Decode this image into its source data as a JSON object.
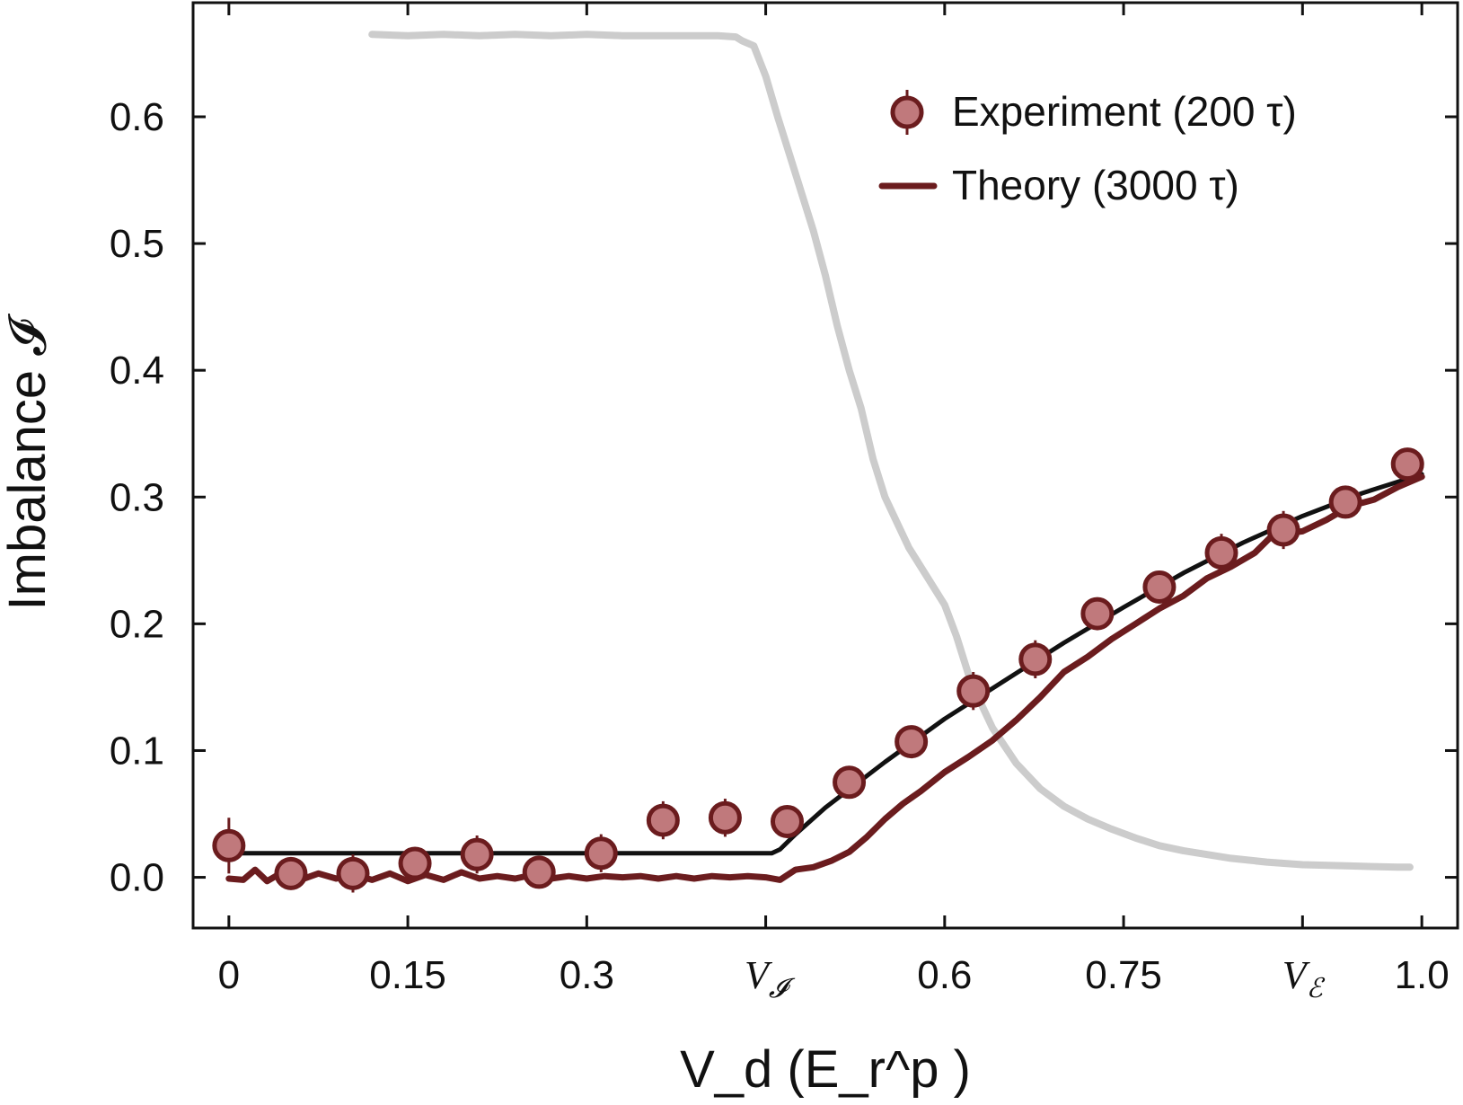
{
  "chart_data": {
    "type": "scatter",
    "xlabel": "V_d (E_r^p )",
    "ylabel": "Imbalance 𝓘",
    "xlim": [
      -0.03,
      1.03
    ],
    "ylim": [
      -0.04,
      0.69
    ],
    "x_ticks": [
      {
        "value": 0,
        "label": "0",
        "color": "#111111"
      },
      {
        "value": 0.15,
        "label": "0.15",
        "color": "#111111"
      },
      {
        "value": 0.3,
        "label": "0.3",
        "color": "#111111"
      },
      {
        "value": 0.6,
        "label": "0.6",
        "color": "#111111"
      },
      {
        "value": 0.75,
        "label": "0.75",
        "color": "#111111"
      },
      {
        "value": 1.0,
        "label": "1.0",
        "color": "#111111"
      }
    ],
    "x_special_ticks": [
      {
        "value": 0.45,
        "base": "V",
        "sub": "𝓘",
        "color": "#b7787a"
      },
      {
        "value": 0.9,
        "base": "V",
        "sub": "ℰ",
        "color": "#7b90bf"
      }
    ],
    "x_minor_ticks": [
      0.45,
      0.9
    ],
    "y_ticks": [
      {
        "value": 0.0,
        "label": "0.0"
      },
      {
        "value": 0.1,
        "label": "0.1"
      },
      {
        "value": 0.2,
        "label": "0.2"
      },
      {
        "value": 0.3,
        "label": "0.3"
      },
      {
        "value": 0.4,
        "label": "0.4"
      },
      {
        "value": 0.5,
        "label": "0.5"
      },
      {
        "value": 0.6,
        "label": "0.6"
      }
    ],
    "legend_position": "top-right",
    "series": [
      {
        "name": "Experiment (200 τ)",
        "kind": "points_with_errorbars",
        "fill": "#c0797c",
        "stroke": "#6b1c1e",
        "points": [
          {
            "x": 0.0,
            "y": 0.025,
            "err": 0.022
          },
          {
            "x": 0.052,
            "y": 0.003,
            "err": 0.01
          },
          {
            "x": 0.104,
            "y": 0.003,
            "err": 0.015
          },
          {
            "x": 0.156,
            "y": 0.011,
            "err": 0.01
          },
          {
            "x": 0.208,
            "y": 0.018,
            "err": 0.015
          },
          {
            "x": 0.26,
            "y": 0.004,
            "err": 0.01
          },
          {
            "x": 0.312,
            "y": 0.019,
            "err": 0.015
          },
          {
            "x": 0.364,
            "y": 0.045,
            "err": 0.015
          },
          {
            "x": 0.416,
            "y": 0.047,
            "err": 0.015
          },
          {
            "x": 0.468,
            "y": 0.044,
            "err": 0.01
          },
          {
            "x": 0.52,
            "y": 0.075,
            "err": 0.012
          },
          {
            "x": 0.572,
            "y": 0.107,
            "err": 0.01
          },
          {
            "x": 0.624,
            "y": 0.147,
            "err": 0.015
          },
          {
            "x": 0.676,
            "y": 0.172,
            "err": 0.015
          },
          {
            "x": 0.728,
            "y": 0.208,
            "err": 0.012
          },
          {
            "x": 0.78,
            "y": 0.229,
            "err": 0.01
          },
          {
            "x": 0.832,
            "y": 0.256,
            "err": 0.015
          },
          {
            "x": 0.884,
            "y": 0.274,
            "err": 0.015
          },
          {
            "x": 0.936,
            "y": 0.296,
            "err": 0.01
          },
          {
            "x": 0.988,
            "y": 0.326,
            "err": 0.012
          }
        ]
      },
      {
        "name": "Theory (3000 τ)",
        "kind": "line",
        "color": "#6b1c1e",
        "points": [
          [
            0.0,
            -0.001
          ],
          [
            0.012,
            -0.002
          ],
          [
            0.022,
            0.006
          ],
          [
            0.032,
            -0.003
          ],
          [
            0.045,
            0.004
          ],
          [
            0.06,
            -0.002
          ],
          [
            0.075,
            0.003
          ],
          [
            0.09,
            -0.001
          ],
          [
            0.105,
            0.002
          ],
          [
            0.12,
            -0.002
          ],
          [
            0.135,
            0.003
          ],
          [
            0.15,
            -0.003
          ],
          [
            0.165,
            0.002
          ],
          [
            0.18,
            -0.002
          ],
          [
            0.195,
            0.004
          ],
          [
            0.21,
            -0.001
          ],
          [
            0.225,
            0.001
          ],
          [
            0.24,
            -0.001
          ],
          [
            0.255,
            0.002
          ],
          [
            0.27,
            -0.001
          ],
          [
            0.285,
            0.001
          ],
          [
            0.3,
            -0.001
          ],
          [
            0.315,
            0.001
          ],
          [
            0.33,
            0.0
          ],
          [
            0.345,
            0.001
          ],
          [
            0.36,
            -0.001
          ],
          [
            0.375,
            0.001
          ],
          [
            0.39,
            -0.001
          ],
          [
            0.405,
            0.001
          ],
          [
            0.42,
            0.0
          ],
          [
            0.435,
            0.001
          ],
          [
            0.45,
            0.0
          ],
          [
            0.462,
            -0.002
          ],
          [
            0.475,
            0.006
          ],
          [
            0.49,
            0.008
          ],
          [
            0.505,
            0.013
          ],
          [
            0.52,
            0.02
          ],
          [
            0.535,
            0.032
          ],
          [
            0.55,
            0.046
          ],
          [
            0.565,
            0.058
          ],
          [
            0.58,
            0.068
          ],
          [
            0.6,
            0.083
          ],
          [
            0.62,
            0.095
          ],
          [
            0.64,
            0.108
          ],
          [
            0.66,
            0.124
          ],
          [
            0.68,
            0.142
          ],
          [
            0.7,
            0.162
          ],
          [
            0.72,
            0.174
          ],
          [
            0.74,
            0.188
          ],
          [
            0.76,
            0.2
          ],
          [
            0.78,
            0.212
          ],
          [
            0.8,
            0.222
          ],
          [
            0.82,
            0.236
          ],
          [
            0.84,
            0.245
          ],
          [
            0.86,
            0.256
          ],
          [
            0.875,
            0.27
          ],
          [
            0.9,
            0.273
          ],
          [
            0.92,
            0.282
          ],
          [
            0.94,
            0.293
          ],
          [
            0.96,
            0.298
          ],
          [
            0.98,
            0.308
          ],
          [
            1.0,
            0.316
          ]
        ]
      },
      {
        "name": "",
        "kind": "line",
        "color": "#111111",
        "points": [
          [
            0.0,
            0.019
          ],
          [
            0.455,
            0.019
          ],
          [
            0.462,
            0.022
          ],
          [
            0.475,
            0.034
          ],
          [
            0.5,
            0.055
          ],
          [
            0.55,
            0.091
          ],
          [
            0.6,
            0.125
          ],
          [
            0.65,
            0.155
          ],
          [
            0.7,
            0.185
          ],
          [
            0.75,
            0.213
          ],
          [
            0.8,
            0.24
          ],
          [
            0.85,
            0.264
          ],
          [
            0.9,
            0.285
          ],
          [
            0.95,
            0.303
          ],
          [
            1.0,
            0.318
          ]
        ]
      },
      {
        "name": "",
        "kind": "line",
        "color": "#cccccc",
        "points": [
          [
            0.12,
            0.665
          ],
          [
            0.15,
            0.664
          ],
          [
            0.18,
            0.665
          ],
          [
            0.21,
            0.664
          ],
          [
            0.24,
            0.665
          ],
          [
            0.27,
            0.664
          ],
          [
            0.3,
            0.665
          ],
          [
            0.33,
            0.664
          ],
          [
            0.36,
            0.664
          ],
          [
            0.39,
            0.664
          ],
          [
            0.41,
            0.664
          ],
          [
            0.425,
            0.663
          ],
          [
            0.43,
            0.66
          ],
          [
            0.44,
            0.656
          ],
          [
            0.45,
            0.632
          ],
          [
            0.46,
            0.6
          ],
          [
            0.47,
            0.57
          ],
          [
            0.48,
            0.54
          ],
          [
            0.49,
            0.51
          ],
          [
            0.5,
            0.475
          ],
          [
            0.51,
            0.435
          ],
          [
            0.52,
            0.4
          ],
          [
            0.53,
            0.37
          ],
          [
            0.54,
            0.33
          ],
          [
            0.55,
            0.3
          ],
          [
            0.57,
            0.26
          ],
          [
            0.59,
            0.23
          ],
          [
            0.6,
            0.215
          ],
          [
            0.61,
            0.19
          ],
          [
            0.62,
            0.16
          ],
          [
            0.63,
            0.138
          ],
          [
            0.64,
            0.118
          ],
          [
            0.66,
            0.09
          ],
          [
            0.68,
            0.07
          ],
          [
            0.7,
            0.056
          ],
          [
            0.72,
            0.046
          ],
          [
            0.74,
            0.038
          ],
          [
            0.76,
            0.031
          ],
          [
            0.78,
            0.025
          ],
          [
            0.8,
            0.021
          ],
          [
            0.82,
            0.018
          ],
          [
            0.84,
            0.015
          ],
          [
            0.87,
            0.012
          ],
          [
            0.9,
            0.01
          ],
          [
            0.94,
            0.009
          ],
          [
            0.98,
            0.008
          ],
          [
            0.99,
            0.008
          ]
        ]
      }
    ]
  }
}
